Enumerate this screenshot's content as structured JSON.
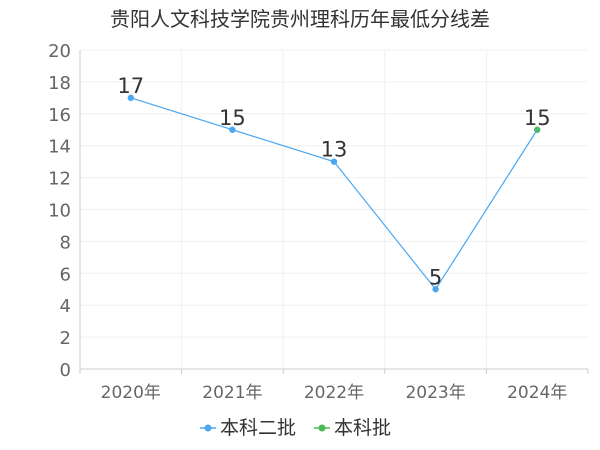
{
  "chart_data": {
    "type": "line",
    "title": "贵阳人文科技学院贵州理科历年最低分线差",
    "categories": [
      "2020年",
      "2021年",
      "2022年",
      "2023年",
      "2024年"
    ],
    "ylim": [
      0,
      20
    ],
    "yticks": [
      0,
      2,
      4,
      6,
      8,
      10,
      12,
      14,
      16,
      18,
      20
    ],
    "grid": true,
    "legend_position": "bottom",
    "series": [
      {
        "name": "本科二批",
        "color": "#4da6f0",
        "points": [
          {
            "x": "2020年",
            "y": 17
          },
          {
            "x": "2021年",
            "y": 15
          },
          {
            "x": "2022年",
            "y": 13
          },
          {
            "x": "2023年",
            "y": 5
          }
        ]
      },
      {
        "name": "本科批",
        "color": "#4cba55",
        "points": [
          {
            "x": "2024年",
            "y": 15
          }
        ]
      }
    ]
  }
}
